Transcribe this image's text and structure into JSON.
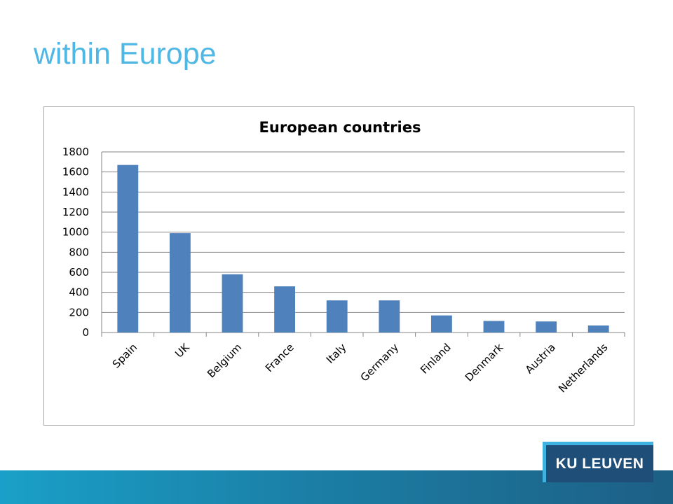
{
  "slide": {
    "title": "within Europe",
    "logo_text": "KU LEUVEN"
  },
  "chart_data": {
    "type": "bar",
    "title": "European countries",
    "xlabel": "",
    "ylabel": "",
    "ylim": [
      0,
      1800
    ],
    "yticks": [
      0,
      200,
      400,
      600,
      800,
      1000,
      1200,
      1400,
      1600,
      1800
    ],
    "grid": true,
    "legend": "none",
    "bar_color": "#4f81bd",
    "categories": [
      "Spain",
      "UK",
      "Belgium",
      "France",
      "Italy",
      "Germany",
      "Finland",
      "Denmark",
      "Austria",
      "Netherlands"
    ],
    "values": [
      1670,
      990,
      580,
      460,
      320,
      320,
      170,
      115,
      110,
      70
    ]
  }
}
